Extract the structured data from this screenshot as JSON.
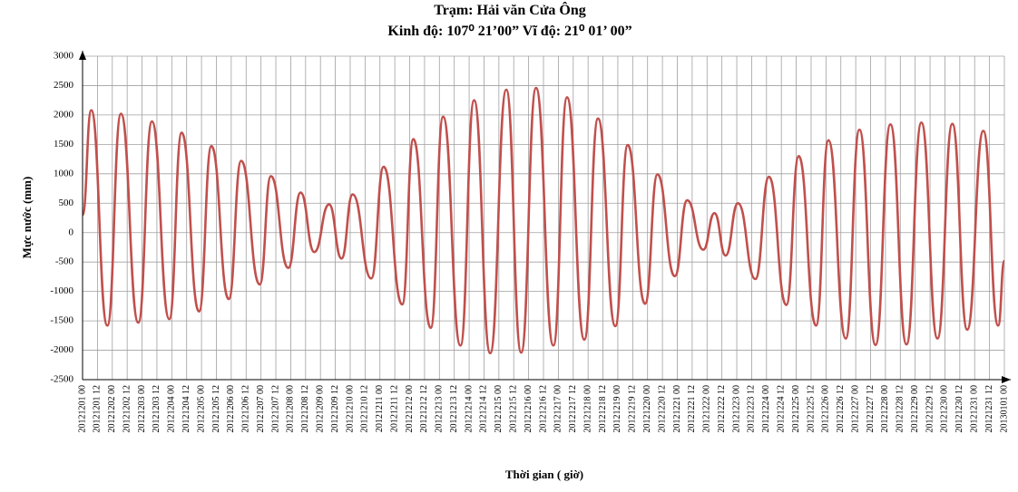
{
  "chart_data": {
    "type": "line",
    "title": "Trạm:  Hải văn Cửa Ông",
    "subtitle": "Kinh độ: 107⁰ 21’00”  Vĩ độ:  21⁰ 01’ 00”",
    "y_label": "Mực nước (mm)",
    "x_label": "Thời gian ( giờ)",
    "ylim": [
      -2500,
      3000
    ],
    "yticks": [
      -2500,
      -2000,
      -1500,
      -1000,
      -500,
      0,
      500,
      1000,
      1500,
      2000,
      2500,
      3000
    ],
    "xticks": [
      "20121201 00",
      "20121201 12",
      "20121202 00",
      "20121202 12",
      "20121203 00",
      "20121203 12",
      "20121204 00",
      "20121204 12",
      "20121205 00",
      "20121205 12",
      "20121206 00",
      "20121206 12",
      "20121207 00",
      "20121207 12",
      "20121208 00",
      "20121208 12",
      "20121209 00",
      "20121209 12",
      "20121210 00",
      "20121210 12",
      "20121211 00",
      "20121211 12",
      "20121212 00",
      "20121212 12",
      "20121213 00",
      "20121213 12",
      "20121214 00",
      "20121214 12",
      "20121215 00",
      "20121215 12",
      "20121216 00",
      "20121216 12",
      "20121217 00",
      "20121217 12",
      "20121218 00",
      "20121218 12",
      "20121219 00",
      "20121219 12",
      "20121220 00",
      "20121220 12",
      "20121221 00",
      "20121221 12",
      "20121222 00",
      "20121222 12",
      "20121223 00",
      "20121223 12",
      "20121224 00",
      "20121224 12",
      "20121225 00",
      "20121225 12",
      "20121226 00",
      "20121226 12",
      "20121227 00",
      "20121227 12",
      "20121228 00",
      "20121228 12",
      "20121229 00",
      "20121229 12",
      "20121230 00",
      "20121230 12",
      "20121231 00",
      "20121231 12",
      "20130101 00"
    ],
    "grid": true,
    "series": [
      {
        "color": "#c0504d",
        "x": [
          "20121201 00",
          "20121201 07",
          "20121201 20",
          "20121202 07",
          "20121202 21",
          "20121203 08",
          "20121203 22",
          "20121204 08",
          "20121204 22",
          "20121205 08",
          "20121205 22",
          "20121206 08",
          "20121206 23",
          "20121207 08",
          "20121207 22",
          "20121208 08",
          "20121208 19",
          "20121209 07",
          "20121209 17",
          "20121210 02",
          "20121210 17",
          "20121211 03",
          "20121211 18",
          "20121212 03",
          "20121212 17",
          "20121213 03",
          "20121213 17",
          "20121214 04",
          "20121214 17",
          "20121215 06",
          "20121215 18",
          "20121216 06",
          "20121216 20",
          "20121217 07",
          "20121217 21",
          "20121218 08",
          "20121218 22",
          "20121219 08",
          "20121219 22",
          "20121220 08",
          "20121220 22",
          "20121221 08",
          "20121221 21",
          "20121222 06",
          "20121222 15",
          "20121223 01",
          "20121223 15",
          "20121224 02",
          "20121224 16",
          "20121225 02",
          "20121225 16",
          "20121226 02",
          "20121226 16",
          "20121227 03",
          "20121227 16",
          "20121228 04",
          "20121228 17",
          "20121229 05",
          "20121229 18",
          "20121230 06",
          "20121230 18",
          "20121231 07",
          "20121231 19",
          "20130101 00"
        ],
        "values": [
          300,
          2080,
          -1580,
          2020,
          -1530,
          1890,
          -1470,
          1700,
          -1340,
          1470,
          -1130,
          1220,
          -880,
          960,
          -600,
          680,
          -330,
          480,
          -440,
          650,
          -780,
          1120,
          -1220,
          1590,
          -1620,
          1970,
          -1920,
          2250,
          -2050,
          2430,
          -2040,
          2460,
          -1920,
          2300,
          -1820,
          1940,
          -1590,
          1490,
          -1210,
          990,
          -740,
          550,
          -290,
          330,
          -390,
          500,
          -790,
          950,
          -1230,
          1300,
          -1580,
          1570,
          -1800,
          1750,
          -1910,
          1840,
          -1900,
          1870,
          -1800,
          1850,
          -1650,
          1730,
          -1580,
          -480
        ]
      }
    ]
  }
}
